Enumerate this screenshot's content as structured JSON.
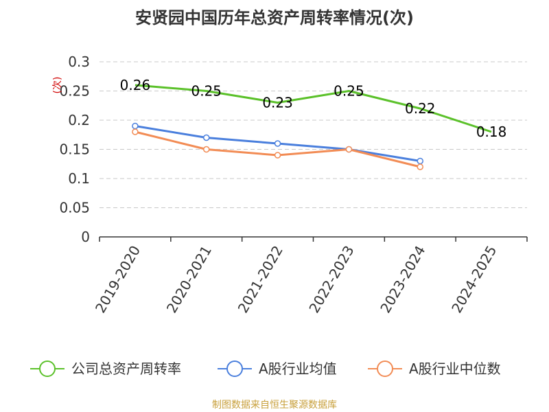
{
  "title": "安贤园中国历年总资产周转率情况(次)",
  "source": "制图数据来自恒生聚源数据库",
  "chart_data": {
    "type": "line",
    "ylabel": "(次)",
    "ylim": [
      0,
      0.3
    ],
    "yticks": [
      "0",
      "0.05",
      "0.1",
      "0.15",
      "0.2",
      "0.25",
      "0.3"
    ],
    "grid": true,
    "legend_position": "bottom",
    "categories": [
      "2019-2020",
      "2020-2021",
      "2021-2022",
      "2022-2023",
      "2023-2024",
      "2024-2025"
    ],
    "series": [
      {
        "name": "公司总资产周转率",
        "color": "#5bc12a",
        "values": [
          0.26,
          0.25,
          0.23,
          0.25,
          0.22,
          0.18
        ],
        "labels": [
          "0.26",
          "0.25",
          "0.23",
          "0.25",
          "0.22",
          "0.18"
        ],
        "show_labels": true
      },
      {
        "name": "A股行业均值",
        "color": "#4a7fdd",
        "values": [
          0.19,
          0.17,
          0.16,
          0.15,
          0.13,
          null
        ],
        "show_labels": false
      },
      {
        "name": "A股行业中位数",
        "color": "#f28c55",
        "values": [
          0.18,
          0.15,
          0.14,
          0.15,
          0.12,
          null
        ],
        "show_labels": false
      }
    ]
  }
}
